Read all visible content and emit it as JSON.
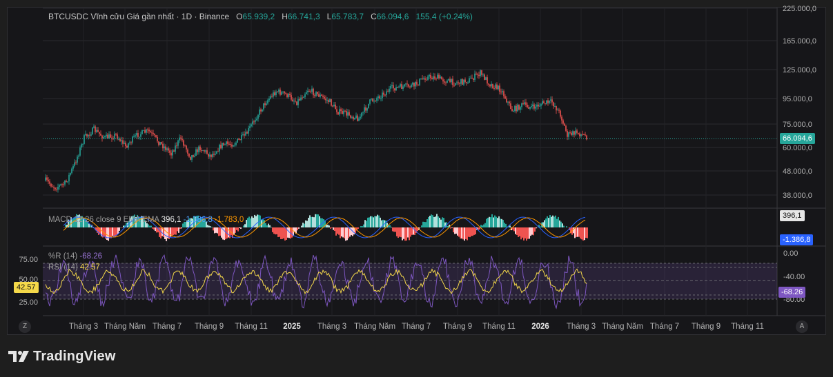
{
  "legend": {
    "symbol": "BTCUSDC Vĩnh cửu Giá gần nhất · 1D · Binance",
    "o_label": "O",
    "o": "65.939,2",
    "h_label": "H",
    "h": "66.741,3",
    "l_label": "L",
    "l": "65.783,7",
    "c_label": "C",
    "c": "66.094,6",
    "change": "155,4 (+0.24%)"
  },
  "price_axis": {
    "ticks": [
      "225.000,0",
      "165.000,0",
      "125.000,0",
      "95.000,0",
      "75.000,0",
      "60.000,0",
      "48.000,0",
      "38.000,0"
    ],
    "current_price": "66.094,6",
    "current_price_color": "#26a69a"
  },
  "macd": {
    "label": "MACD",
    "params": "12 26 close 9 EMA EMA",
    "hist_value": "396,1",
    "macd_value": "-1.386,8",
    "signal_value": "-1.783,0",
    "axis_tag_1": "396,1",
    "axis_tag_2": "-1.386,8"
  },
  "oscillators": {
    "wr_label": "%R (14)",
    "wr_value": "-68.26",
    "rsi_label": "RSI (14)",
    "rsi_value": "42.57",
    "left_ticks": [
      "75.00",
      "50.00",
      "25.00"
    ],
    "left_tag": "42.57",
    "right_ticks": [
      "0.00",
      "-40.00",
      "-80.00"
    ],
    "right_tag": "-68.26"
  },
  "time_axis": {
    "labels": [
      "Tháng 3",
      "Tháng Năm",
      "Tháng 7",
      "Tháng 9",
      "Tháng 11",
      "2025",
      "Tháng 3",
      "Tháng Năm",
      "Tháng 7",
      "Tháng 9",
      "Tháng 11",
      "2026",
      "Tháng 3",
      "Tháng Năm",
      "Tháng 7",
      "Tháng 9",
      "Tháng 11"
    ],
    "left_button": "Z",
    "right_button": "A"
  },
  "colors": {
    "up": "#26a69a",
    "down": "#ef5350",
    "macd_hist_up": "#26a69a",
    "macd_hist_down": "#ef5350",
    "macd_line": "#2962ff",
    "signal_line": "#ff9800",
    "rsi_line": "#f5d94a",
    "wr_line": "#7e57c2"
  },
  "brand": "TradingView"
}
